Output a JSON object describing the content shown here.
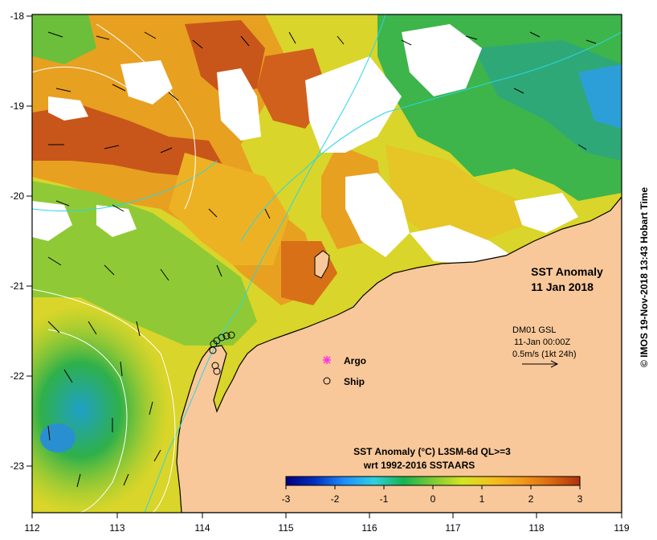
{
  "map": {
    "title": "SST Anomaly",
    "date": "11 Jan 2018",
    "credit": "© IMOS 19-Nov-2018 13:43 Hobart Time",
    "lon_ticks": [
      "112",
      "113",
      "114",
      "115",
      "116",
      "117",
      "118",
      "119"
    ],
    "lat_ticks": [
      "-18",
      "-19",
      "-20",
      "-21",
      "-22",
      "-23"
    ],
    "legend": {
      "argo": "Argo",
      "ship": "Ship"
    },
    "current": {
      "line1": "DM01 GSL",
      "line2": "11-Jan 00:00Z",
      "line3": "0.5m/s (1kt 24h)"
    },
    "colorbar": {
      "title": "SST Anomaly (°C) L3SM-6d QL>=3",
      "subtitle": "wrt 1992-2016 SSTAARS",
      "ticks": [
        "-3",
        "-2",
        "-1",
        "0",
        "1",
        "2",
        "3"
      ]
    },
    "colors": {
      "land": "#F8C89A",
      "no_data": "#FFFFFF",
      "argo": "#FF2EE6",
      "bathymetry": "#29D6E8",
      "currents": "#000000"
    },
    "scale_stops": [
      "#000080",
      "#0030C0",
      "#1E90FF",
      "#2FD0E0",
      "#16B450",
      "#7CCB33",
      "#D4E620",
      "#F3C21D",
      "#F39A1A",
      "#DC6A10",
      "#B0300C"
    ]
  }
}
